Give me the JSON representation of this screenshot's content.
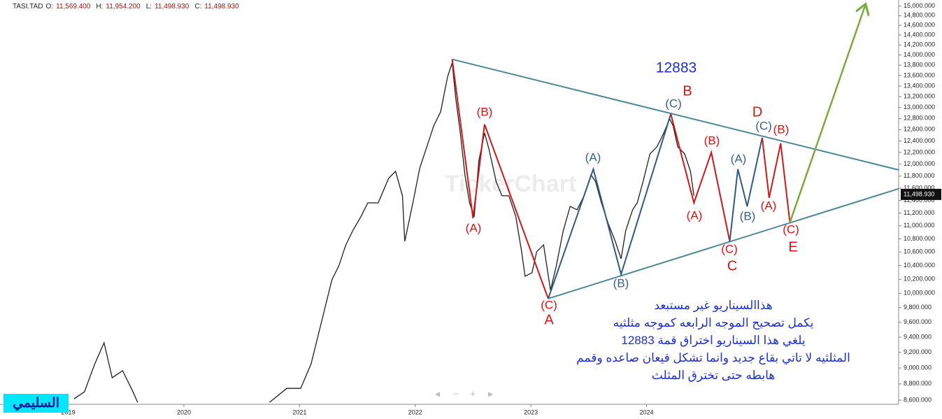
{
  "chart_data": {
    "type": "line",
    "symbol": "TASI.TAD",
    "ohlc": [
      {
        "label": "O:",
        "text": "11,569.400"
      },
      {
        "label": "H:",
        "text": "11,954.200"
      },
      {
        "label": "L:",
        "text": "11,498.930"
      },
      {
        "label": "C:",
        "text": "11,498.930"
      }
    ],
    "watermark": "TickerChart",
    "author": "السليمي",
    "log_y": true,
    "color": "#1f1f1f",
    "xlim": [
      2018.41,
      2026.18
    ],
    "xticks": [
      {
        "value": 2019,
        "label": "2019"
      },
      2020,
      2021,
      2022,
      2023,
      2024
    ],
    "ylim": [
      8550,
      15130
    ],
    "yticks": [
      {
        "value": 8600,
        "label": "8,600.000"
      },
      {
        "value": 8800,
        "label": "8,800.000"
      },
      {
        "value": 9000,
        "label": "9,000.000"
      },
      {
        "value": 9200,
        "label": "9,200.000"
      },
      {
        "value": 9400,
        "label": "9,400.000"
      },
      {
        "value": 9600,
        "label": "9,600.000"
      },
      {
        "value": 9800,
        "label": "9,800.000"
      },
      {
        "value": 10000,
        "label": "10,000.000"
      },
      {
        "value": 10200,
        "label": "10,200.000"
      },
      {
        "value": 10400,
        "label": "10,400.000"
      },
      {
        "value": 10600,
        "label": "10,600.000"
      },
      {
        "value": 10800,
        "label": "10,800.000"
      },
      {
        "value": 11000,
        "label": "11,000.000"
      },
      {
        "value": 11200,
        "label": "11,200.000"
      },
      {
        "value": 11400,
        "label": "11,400.000"
      },
      {
        "value": 11600,
        "label": "11,600.000"
      },
      {
        "value": 11800,
        "label": "11,800.000"
      },
      {
        "value": 12000,
        "label": "12,000.000"
      },
      {
        "value": 12200,
        "label": "12,200.000"
      },
      {
        "value": 12400,
        "label": "12,400.000"
      },
      {
        "value": 12600,
        "label": "12,600.000"
      },
      {
        "value": 12800,
        "label": "12,800.000"
      },
      {
        "value": 13000,
        "label": "13,000.000"
      },
      {
        "value": 13200,
        "label": "13,200.000"
      },
      {
        "value": 13400,
        "label": "13,400.000"
      },
      {
        "value": 13600,
        "label": "13,600.000"
      },
      {
        "value": 13800,
        "label": "13,800.000"
      },
      {
        "value": 14000,
        "label": "14,000.000"
      },
      {
        "value": 14200,
        "label": "14,200.000"
      },
      {
        "value": 14400,
        "label": "14,400.000"
      },
      {
        "value": 14600,
        "label": "14,600.000"
      },
      {
        "value": 14800,
        "label": "14,800.000"
      },
      {
        "value": 15000,
        "label": "15,000.000"
      }
    ],
    "last_price": {
      "value": 11498.93,
      "label": "11,498.930"
    },
    "x": [
      2019.05,
      2019.14,
      2019.23,
      2019.31,
      2019.38,
      2019.47,
      2019.56,
      2019.6,
      2020.2,
      2020.74,
      2020.89,
      2021.01,
      2021.1,
      2021.16,
      2021.22,
      2021.28,
      2021.34,
      2021.4,
      2021.46,
      2021.53,
      2021.59,
      2021.68,
      2021.77,
      2021.83,
      2021.89,
      2021.91,
      2021.98,
      2022.04,
      2022.1,
      2022.16,
      2022.22,
      2022.28,
      2022.32,
      2022.35,
      2022.39,
      2022.43,
      2022.47,
      2022.51,
      2022.55,
      2022.6,
      2022.64,
      2022.7,
      2022.75,
      2022.81,
      2022.87,
      2022.92,
      2022.95,
      2023.01,
      2023.05,
      2023.11,
      2023.17,
      2023.22,
      2023.28,
      2023.34,
      2023.4,
      2023.46,
      2023.52,
      2023.56,
      2023.61,
      2023.67,
      2023.73,
      2023.78,
      2023.82,
      2023.88,
      2023.92,
      2023.97,
      2024.03,
      2024.09,
      2024.15,
      2024.2,
      2024.23,
      2024.27,
      2024.33,
      2024.38,
      2024.41
    ],
    "values": [
      8616,
      8702,
      9054,
      9326,
      8877,
      8966,
      8702,
      8574,
      null,
      8574,
      8745,
      8745,
      9054,
      9419,
      9798,
      10193,
      10397,
      10708,
      10923,
      11142,
      11363,
      11363,
      11763,
      11880,
      11476,
      10762,
      11363,
      11938,
      12298,
      12667,
      12921,
      13575,
      13846,
      13179,
      12543,
      11822,
      11363,
      11142,
      12057,
      12543,
      12237,
      11706,
      11476,
      11476,
      11142,
      10605,
      10244,
      10295,
      10605,
      10708,
      10043,
      10397,
      10923,
      11307,
      11252,
      11476,
      11822,
      11706,
      11363,
      11031,
      10762,
      10500,
      10923,
      11252,
      11363,
      11706,
      12177,
      12298,
      12543,
      12794,
      12667,
      12298,
      12177,
      11880,
      11476
    ],
    "overlays": [
      {
        "color": "#4b8794",
        "x": [
          2022.32,
          2026.18
        ],
        "y": [
          13914,
          11904
        ]
      },
      {
        "color": "#4b8794",
        "x": [
          2023.15,
          2026.18
        ],
        "y": [
          9926,
          11591
        ]
      },
      {
        "color": "#d01818",
        "x": [
          2022.32,
          2022.5,
          2022.6,
          2023.15
        ],
        "y": [
          13914,
          11118,
          12693,
          9926
        ]
      },
      {
        "color": "#2f5a86",
        "x": [
          2023.15,
          2023.54,
          2023.78,
          2024.21
        ],
        "y": [
          9926,
          11916,
          10273,
          12882
        ]
      },
      {
        "color": "#d01818",
        "x": [
          2024.21,
          2024.41,
          2024.56,
          2024.72
        ],
        "y": [
          12882,
          11363,
          12201,
          10762
        ]
      },
      {
        "color": "#2f5a86",
        "x": [
          2024.72,
          2024.79,
          2024.87,
          2025.0
        ],
        "y": [
          10762,
          11916,
          11307,
          12456
        ]
      },
      {
        "color": "#d01818",
        "x": [
          2025.0,
          2025.06,
          2025.16,
          2025.24
        ],
        "y": [
          12456,
          11442,
          12358,
          11053
        ]
      },
      {
        "color": "#7aab3c",
        "x": [
          2025.24,
          2025.89
        ],
        "y": [
          11053,
          15010
        ],
        "arrow": true
      }
    ],
    "wave_labels": [
      {
        "text": "12883",
        "color": "#1d2fd6"
      },
      {
        "text": "B",
        "color": "#e01010"
      },
      {
        "text": "(C)",
        "color": "#3a6088"
      },
      {
        "text": "(B)",
        "color": "#e01010"
      },
      {
        "text": "(A)",
        "color": "#e01010"
      },
      {
        "text": "(A)",
        "color": "#3a6088"
      },
      {
        "text": "(B)",
        "color": "#3a6088"
      },
      {
        "text": "(C)",
        "color": "#e01010"
      },
      {
        "text": "A",
        "color": "#e01010"
      },
      {
        "text": "(B)",
        "color": "#e01010"
      },
      {
        "text": "(A)",
        "color": "#e01010"
      },
      {
        "text": "(A)",
        "color": "#3a6088"
      },
      {
        "text": "(B)",
        "color": "#3a6088"
      },
      {
        "text": "(C)",
        "color": "#e01010"
      },
      {
        "text": "C",
        "color": "#e01010"
      },
      {
        "text": "D",
        "color": "#e01010"
      },
      {
        "text": "(C)",
        "color": "#3a6088"
      },
      {
        "text": "(B)",
        "color": "#e01010"
      },
      {
        "text": "(A)",
        "color": "#e01010"
      },
      {
        "text": "(C)",
        "color": "#e01010"
      },
      {
        "text": "E",
        "color": "#e01010"
      }
    ],
    "note_lines": [
      "هذاالسيناريو  غير  مستبعد",
      "يكمل تصحيح الموجه الرابعه كموجه مثلثيه",
      "يلغي هذا السيناريو اختراق قمة 12883",
      "المثلثيه لا تاتي بقاع جديد وانما تشكل قيعان صاعده وقمم",
      "هابطه  حتى تخترق المثلث"
    ]
  }
}
